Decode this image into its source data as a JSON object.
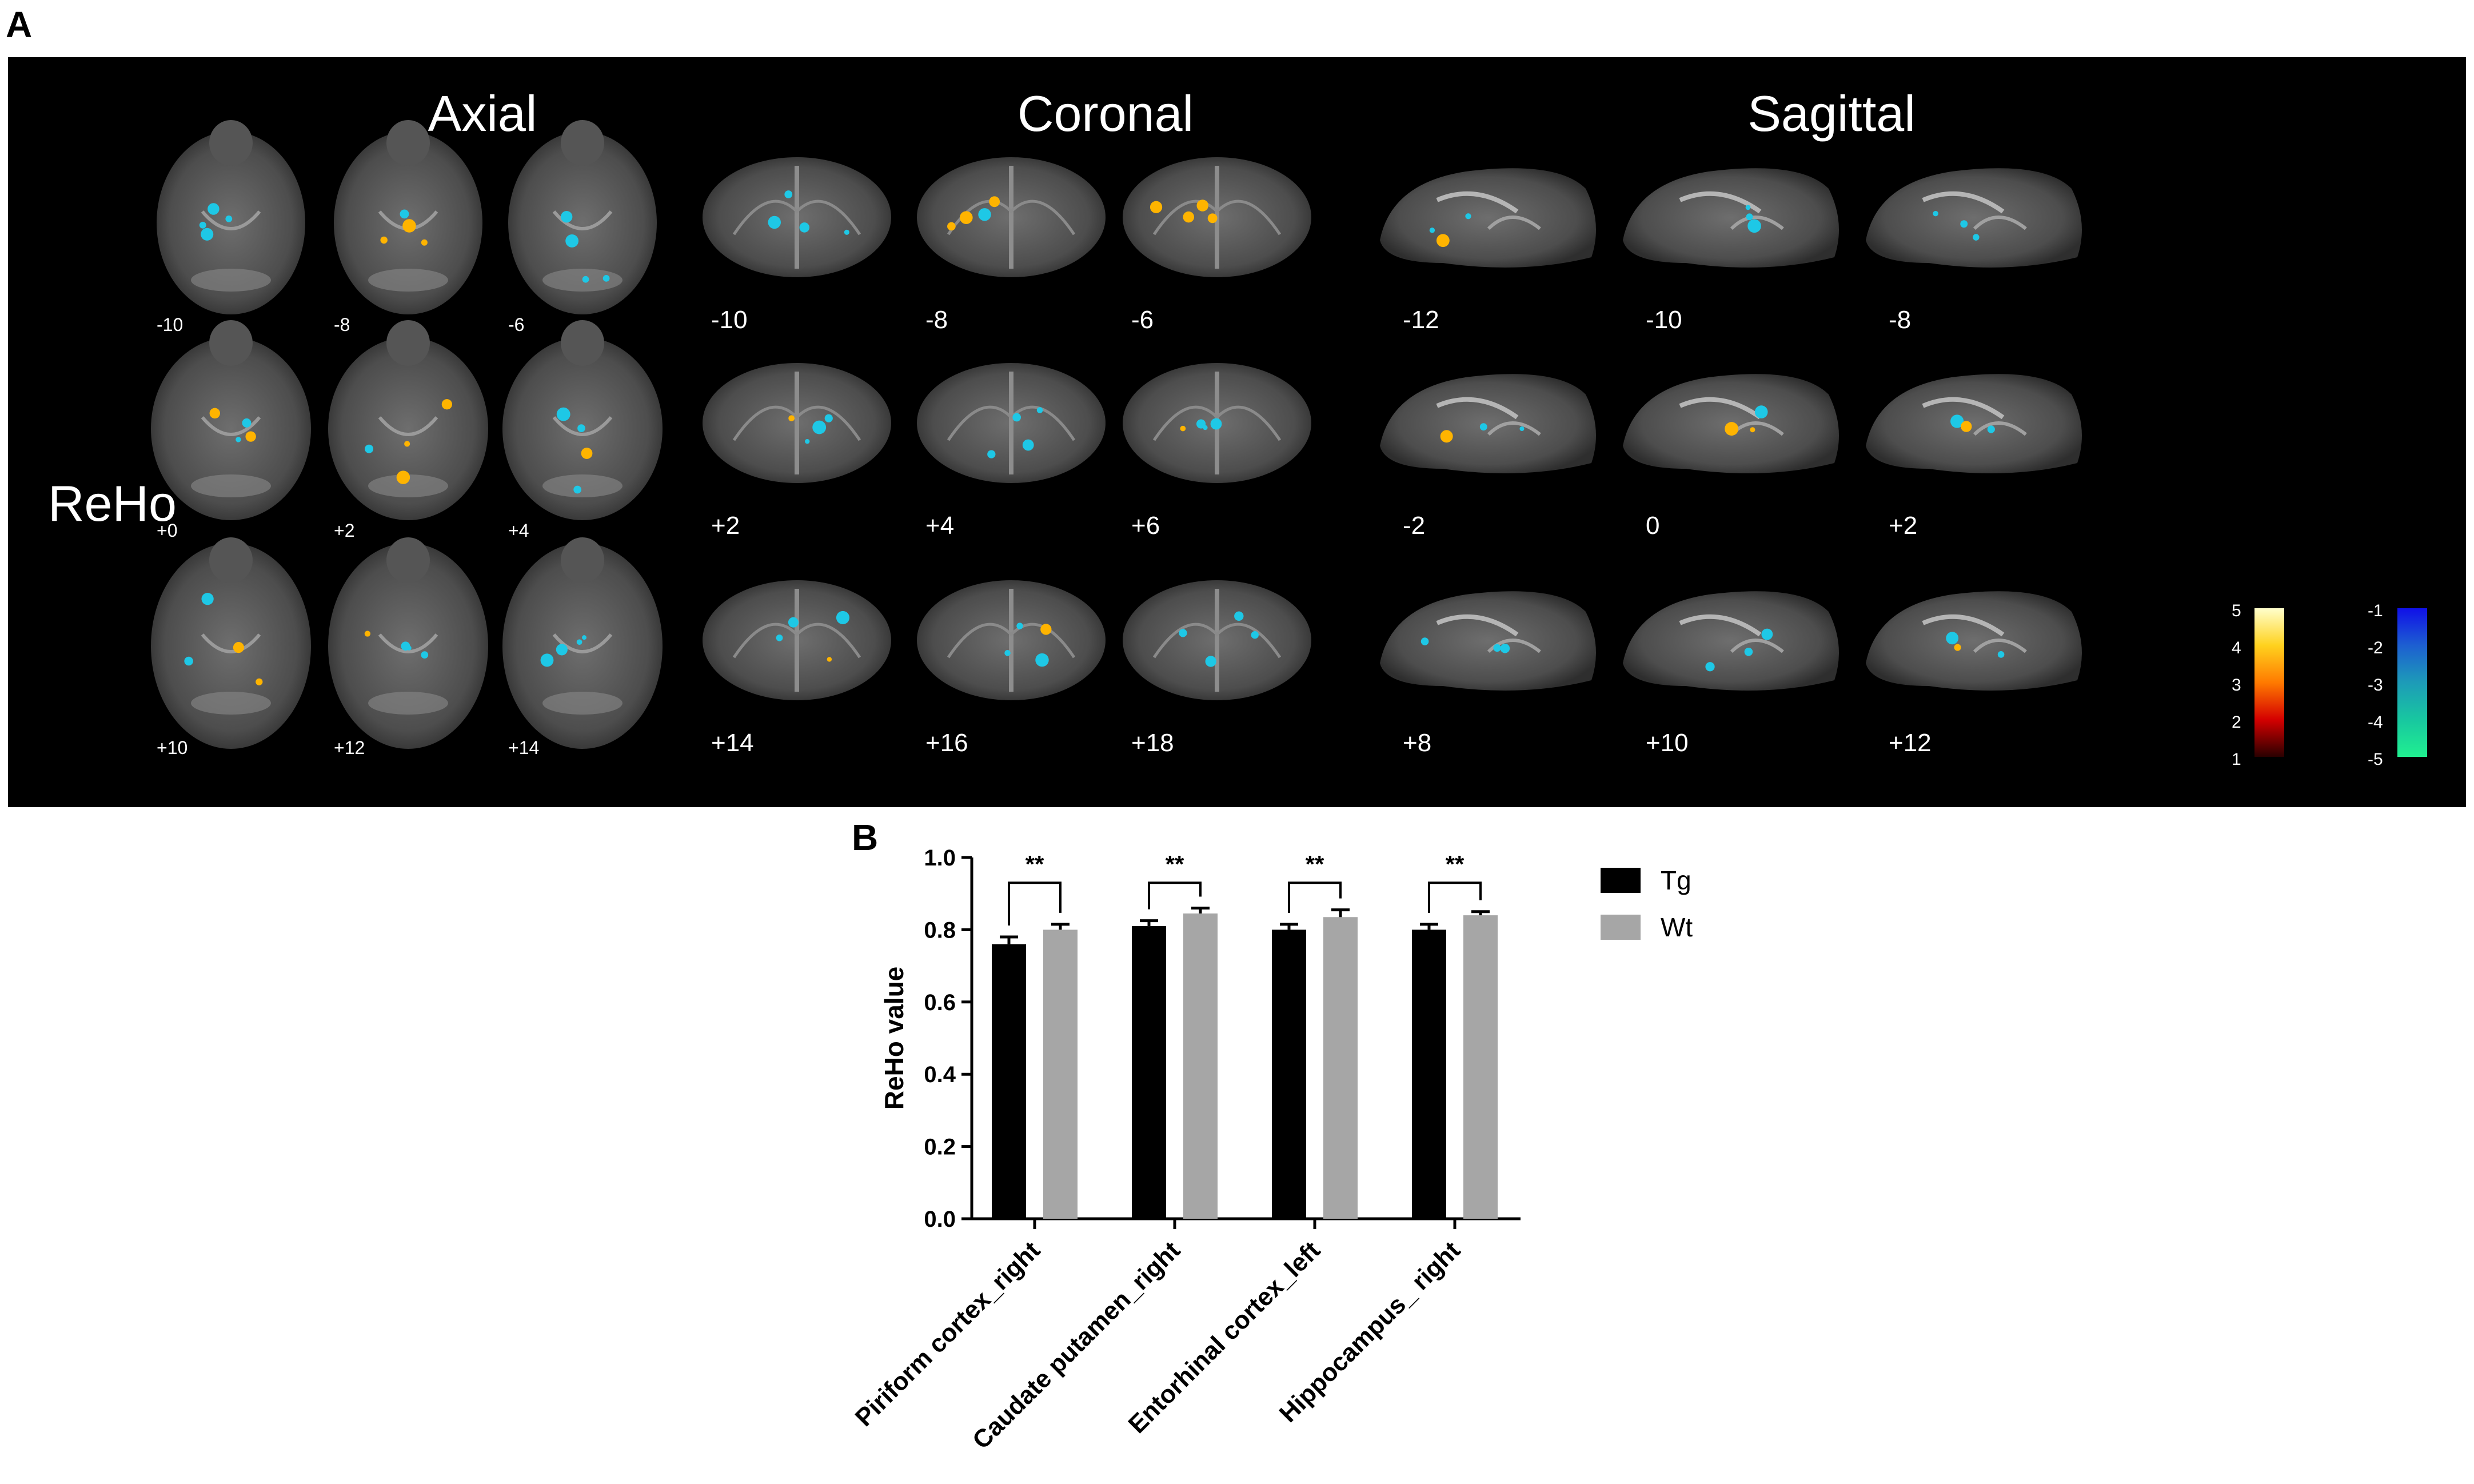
{
  "figure": {
    "panel_a_letter": "A",
    "panel_b_letter": "B",
    "panel_a": {
      "row_label": "ReHo",
      "views": [
        {
          "title": "Axial",
          "slice_labels": [
            "-10",
            "-8",
            "-6",
            "+0",
            "+2",
            "+4",
            "+10",
            "+12",
            "+14"
          ]
        },
        {
          "title": "Coronal",
          "slice_labels": [
            "-10",
            "-8",
            "-6",
            "+2",
            "+4",
            "+6",
            "+14",
            "+16",
            "+18"
          ]
        },
        {
          "title": "Sagittal",
          "slice_labels": [
            "-12",
            "-10",
            "-8",
            "-2",
            "0",
            "+2",
            "+8",
            "+10",
            "+12"
          ]
        }
      ],
      "colorbar_positive": {
        "ticks": [
          "5",
          "4",
          "3",
          "2",
          "1"
        ],
        "colors": [
          "#ffffcc",
          "#ffd21e",
          "#ff7a00",
          "#d40000",
          "#2a0000"
        ]
      },
      "colorbar_negative": {
        "ticks": [
          "-1",
          "-2",
          "-3",
          "-4",
          "-5"
        ],
        "colors": [
          "#1010e8",
          "#1d5fd1",
          "#1d9bb8",
          "#18c7a0",
          "#20f090"
        ]
      },
      "blob_colors": {
        "positive": "#ffb400",
        "negative": "#1ec8e6"
      }
    }
  },
  "chart_data": {
    "type": "bar",
    "categories": [
      "Piriform cortex_right",
      "Caudate putamen_right",
      "Entorhinal cortex_left",
      "Hippocampus_ right"
    ],
    "series": [
      {
        "name": "Tg",
        "values": [
          0.76,
          0.81,
          0.8,
          0.8
        ],
        "errors": [
          0.02,
          0.015,
          0.015,
          0.015
        ],
        "color": "#000000"
      },
      {
        "name": "Wt",
        "values": [
          0.8,
          0.845,
          0.835,
          0.84
        ],
        "errors": [
          0.015,
          0.015,
          0.02,
          0.01
        ],
        "color": "#a6a6a6"
      }
    ],
    "significance": [
      "**",
      "**",
      "**",
      "**"
    ],
    "ylabel": "ReHo value",
    "xlabel": "",
    "ylim": [
      0,
      1.0
    ],
    "yticks": [
      "0.0",
      "0.2",
      "0.4",
      "0.6",
      "0.8",
      "1.0"
    ],
    "legend_placement": "top-right"
  }
}
